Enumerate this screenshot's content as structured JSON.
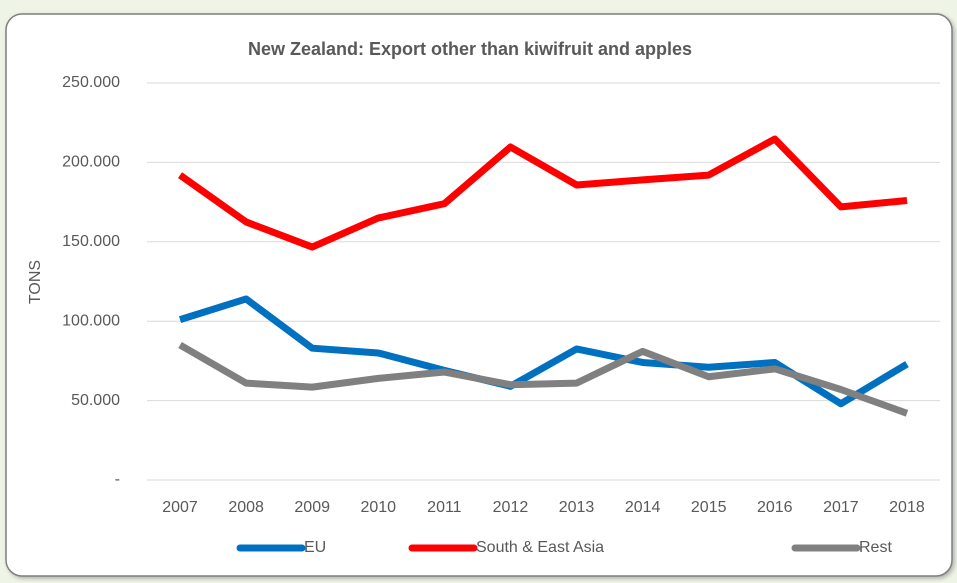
{
  "chart_data": {
    "type": "line",
    "title": "New Zealand: Export other than kiwifruit and apples",
    "y_label": "TONS",
    "categories": [
      "2007",
      "2008",
      "2009",
      "2010",
      "2011",
      "2012",
      "2013",
      "2014",
      "2015",
      "2016",
      "2017",
      "2018"
    ],
    "series": [
      {
        "name": "EU",
        "color": "#0070c0",
        "values": [
          101000,
          114000,
          83000,
          80000,
          69000,
          59000,
          82500,
          74000,
          71000,
          74000,
          48000,
          73000
        ]
      },
      {
        "name": "South & East Asia",
        "color": "#ff0000",
        "values": [
          192000,
          162500,
          146700,
          165000,
          174000,
          209700,
          185800,
          189000,
          192000,
          214700,
          172000,
          176000
        ]
      },
      {
        "name": "Rest",
        "color": "#808080",
        "values": [
          85000,
          61000,
          58500,
          64000,
          68000,
          60000,
          61000,
          81000,
          65000,
          70000,
          57000,
          42000
        ]
      }
    ],
    "ylim": [
      0,
      250000
    ],
    "yticks": [
      {
        "value": 0,
        "label": "-"
      },
      {
        "value": 50000,
        "label": "50.000"
      },
      {
        "value": 100000,
        "label": "100.000"
      },
      {
        "value": 150000,
        "label": "150.000"
      },
      {
        "value": 200000,
        "label": "200.000"
      },
      {
        "value": 250000,
        "label": "250.000"
      }
    ],
    "grid": true,
    "legend": "bottom"
  }
}
